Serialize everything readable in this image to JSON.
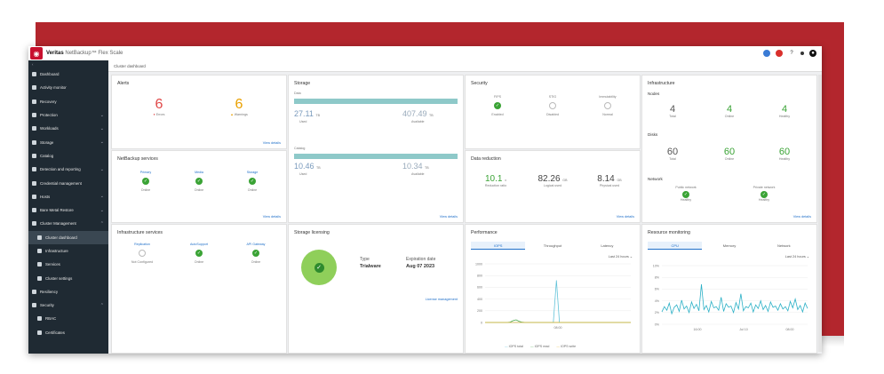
{
  "app": {
    "brand": "Veritas",
    "product": "NetBackup™ Flex Scale"
  },
  "breadcrumb": "Cluster dashboard",
  "sidebar": {
    "items": [
      {
        "label": "Dashboard",
        "chevron": ""
      },
      {
        "label": "Activity monitor",
        "chevron": ""
      },
      {
        "label": "Recovery",
        "chevron": ""
      },
      {
        "label": "Protection",
        "chevron": "⌄"
      },
      {
        "label": "Workloads",
        "chevron": "⌄"
      },
      {
        "label": "Storage",
        "chevron": "⌄"
      },
      {
        "label": "Catalog",
        "chevron": ""
      },
      {
        "label": "Detection and reporting",
        "chevron": "⌄"
      },
      {
        "label": "Credential management",
        "chevron": ""
      },
      {
        "label": "Hosts",
        "chevron": "⌄"
      },
      {
        "label": "Bare Metal Restore",
        "chevron": "⌄"
      },
      {
        "label": "Cluster Management",
        "chevron": "⌃"
      },
      {
        "label": "Cluster dashboard",
        "chevron": "",
        "sub": true,
        "active": true
      },
      {
        "label": "Infrastructure",
        "chevron": "",
        "sub": true
      },
      {
        "label": "Services",
        "chevron": "",
        "sub": true
      },
      {
        "label": "Cluster settings",
        "chevron": "",
        "sub": true
      },
      {
        "label": "Resiliency",
        "chevron": ""
      },
      {
        "label": "Security",
        "chevron": "⌃"
      },
      {
        "label": "RBAC",
        "chevron": "",
        "sub": true
      },
      {
        "label": "Certificates",
        "chevron": "",
        "sub": true
      }
    ]
  },
  "alerts": {
    "title": "Alerts",
    "errors": "6",
    "errors_label": "Errors",
    "warnings": "6",
    "warnings_label": "Warnings",
    "view": "View details",
    "error_color": "#e04848",
    "warning_color": "#e9a000"
  },
  "storage": {
    "title": "Storage",
    "data_label": "Data",
    "data_used": "27.11",
    "data_used_unit": "TB",
    "data_used_label": "Used",
    "data_avail": "407.49",
    "data_avail_unit": "TB",
    "data_avail_label": "Available",
    "catalog_label": "Catalog",
    "cat_used": "10.46",
    "cat_used_unit": "TB",
    "cat_used_label": "Used",
    "cat_avail": "10.34",
    "cat_avail_unit": "TB",
    "cat_avail_label": "Available",
    "view": "View details"
  },
  "security": {
    "title": "Security",
    "items": [
      {
        "name": "FIPS",
        "status": "Enabled",
        "ok": true
      },
      {
        "name": "STIG",
        "status": "Disabled",
        "ok": false
      },
      {
        "name": "Immutability",
        "status": "Normal",
        "ok": false
      }
    ]
  },
  "infrastructure": {
    "title": "Infrastructure",
    "nodes_label": "Nodes",
    "nodes_total": "4",
    "nodes_total_label": "Total",
    "nodes_online": "4",
    "nodes_online_label": "Online",
    "nodes_healthy": "4",
    "nodes_healthy_label": "Healthy",
    "disks_label": "Disks",
    "disks_total": "60",
    "disks_total_label": "Total",
    "disks_online": "60",
    "disks_online_label": "Online",
    "disks_healthy": "60",
    "disks_healthy_label": "Healthy",
    "network_label": "Network",
    "net_public": "Public network",
    "net_public_status": "Healthy",
    "net_private": "Private network",
    "net_private_status": "Healthy",
    "view": "View details"
  },
  "nbservices": {
    "title": "NetBackup services",
    "items": [
      {
        "name": "Primary",
        "status": "Online"
      },
      {
        "name": "Media",
        "status": "Online"
      },
      {
        "name": "Storage",
        "status": "Online"
      }
    ],
    "view": "View details"
  },
  "datareduction": {
    "title": "Data reduction",
    "ratio": "10.1",
    "ratio_unit": "x",
    "ratio_label": "Reduction ratio",
    "logical": "82.26",
    "logical_unit": "GB",
    "logical_label": "Logical used",
    "physical": "8.14",
    "physical_unit": "GB",
    "physical_label": "Physical used",
    "view": "View details"
  },
  "infraservices": {
    "title": "Infrastructure services",
    "items": [
      {
        "name": "Replication",
        "status": "Not Configured",
        "ok": false
      },
      {
        "name": "AutoSupport",
        "status": "Online",
        "ok": true
      },
      {
        "name": "API Gateway",
        "status": "Online",
        "ok": true
      }
    ]
  },
  "licensing": {
    "title": "Storage licensing",
    "type_label": "Type",
    "type_value": "Trialware",
    "exp_label": "Expiration date",
    "exp_value": "Aug 07 2023",
    "link": "License management"
  },
  "performance": {
    "title": "Performance",
    "tabs": [
      "IOPS",
      "Throughput",
      "Latency"
    ],
    "range": "Last 24 hours ⌄",
    "legend": [
      "IOPS total",
      "IOPS read",
      "IOPS write"
    ],
    "legend_colors": [
      "#62c3d9",
      "#49a84b",
      "#e8b93c"
    ]
  },
  "resource": {
    "title": "Resource monitoring",
    "tabs": [
      "CPU",
      "Memory",
      "Network"
    ],
    "range": "Last 24 hours ⌄",
    "line_color": "#2bb0c6"
  },
  "chart_data": [
    {
      "type": "line",
      "name": "performance-iops",
      "yticks": [
        "1000",
        "800",
        "600",
        "400",
        "200",
        "0"
      ],
      "xticks": [
        "08:00"
      ],
      "series": [
        {
          "name": "IOPS total",
          "values": [
            0,
            0,
            0,
            0,
            0,
            0,
            0,
            0,
            0,
            0,
            0,
            0,
            0,
            0,
            0,
            0,
            0,
            0,
            0,
            0,
            0,
            0,
            0,
            720,
            0,
            0,
            0,
            0,
            0,
            0,
            0,
            0,
            0,
            0,
            0,
            0,
            0,
            0,
            0,
            0,
            0,
            0,
            0,
            0,
            0,
            0,
            0,
            0
          ]
        },
        {
          "name": "IOPS read",
          "values": [
            0,
            0,
            0,
            0,
            0,
            0,
            0,
            0,
            5,
            30,
            45,
            20,
            5,
            0,
            0,
            0,
            0,
            0,
            0,
            0,
            0,
            0,
            0,
            0,
            0,
            0,
            0,
            0,
            0,
            0,
            0,
            0,
            0,
            0,
            0,
            0,
            0,
            0,
            0,
            0,
            0,
            0,
            0,
            0,
            0,
            0,
            0,
            0
          ]
        },
        {
          "name": "IOPS write",
          "values": [
            0,
            0,
            0,
            0,
            0,
            0,
            0,
            0,
            0,
            0,
            0,
            0,
            0,
            0,
            0,
            0,
            0,
            0,
            0,
            0,
            0,
            0,
            0,
            0,
            0,
            0,
            0,
            0,
            0,
            0,
            0,
            0,
            0,
            0,
            0,
            0,
            0,
            0,
            0,
            0,
            0,
            0,
            0,
            0,
            0,
            0,
            0,
            0
          ]
        }
      ]
    },
    {
      "type": "line",
      "name": "resource-cpu",
      "yticks": [
        "10%",
        "8%",
        "6%",
        "4%",
        "2%",
        "0%"
      ],
      "xticks": [
        "16:00",
        "Jul 10",
        "08:00"
      ],
      "series": [
        {
          "name": "CPU",
          "values": [
            2.1,
            3.0,
            2.4,
            3.6,
            1.8,
            2.9,
            3.3,
            2.2,
            4.1,
            2.6,
            3.1,
            2.0,
            3.8,
            2.7,
            3.4,
            2.3,
            6.8,
            2.5,
            3.2,
            2.1,
            3.9,
            2.8,
            3.0,
            2.4,
            4.6,
            2.2,
            3.5,
            2.9,
            3.1,
            2.0,
            3.7,
            2.6,
            5.2,
            2.3,
            3.0,
            2.8,
            3.6,
            2.1,
            3.3,
            2.7,
            4.0,
            2.5,
            3.2,
            2.2,
            3.8,
            2.9,
            3.1,
            2.4,
            3.5,
            2.6,
            3.0,
            2.3,
            3.9,
            2.8,
            4.3,
            2.5,
            3.2,
            2.1,
            3.6,
            2.7
          ]
        }
      ]
    }
  ]
}
